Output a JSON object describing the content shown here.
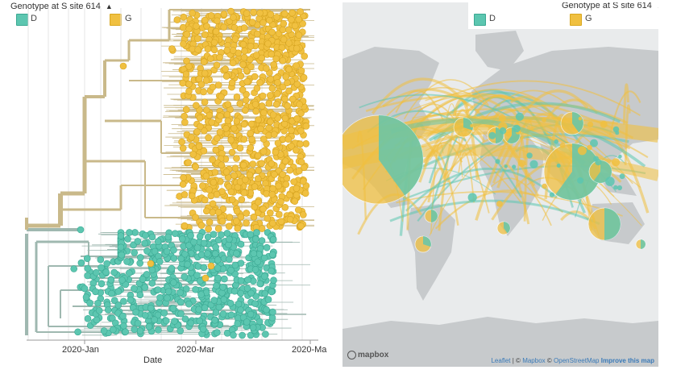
{
  "tree_panel": {
    "legend_title": "Genotype at S site 614",
    "legend_items": [
      {
        "label": "D",
        "color": "#5cc6b0"
      },
      {
        "label": "G",
        "color": "#f0c040"
      }
    ],
    "x_axis": {
      "ticks": [
        "2020-Jan",
        "2020-Mar",
        "2020-Ma"
      ],
      "label": "Date"
    }
  },
  "map_panel": {
    "legend_title": "Genotype at S site 614",
    "legend_items": [
      {
        "label": "D",
        "color": "#5cc6b0"
      },
      {
        "label": "G",
        "color": "#f0c040"
      }
    ],
    "logo_text": "mapbox",
    "attribution": {
      "leaflet": "Leaflet",
      "sep1": "| ©",
      "mapbox": "Mapbox",
      "sep2": "©",
      "osm": "OpenStreetMap",
      "improve": "Improve this map"
    }
  },
  "colors": {
    "D": "#5cc6b0",
    "G": "#f0c040",
    "branch_G": "#c9b98a",
    "branch_D": "#9fb8b0",
    "ocean": "#e9ebec",
    "land": "#c7cacc"
  }
}
